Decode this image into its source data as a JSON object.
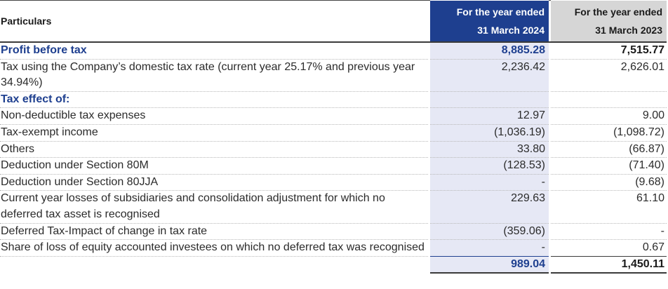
{
  "header": {
    "particulars": "Particulars",
    "col_2024_line1": "For the year ended",
    "col_2024_line2": "31 March 2024",
    "col_2023_line1": "For the year ended",
    "col_2023_line2": "31 March 2023"
  },
  "rows": [
    {
      "label": "Profit before tax",
      "y2024": "8,885.28",
      "y2023": "7,515.77"
    },
    {
      "label": "Tax using the Company’s domestic tax rate (current year 25.17% and previous year 34.94%)",
      "y2024": "2,236.42",
      "y2023": "2,626.01"
    },
    {
      "label": "Tax effect of:",
      "y2024": "",
      "y2023": ""
    },
    {
      "label": "Non-deductible tax expenses",
      "y2024": "12.97",
      "y2023": "9.00"
    },
    {
      "label": "Tax-exempt income",
      "y2024": "(1,036.19)",
      "y2023": "(1,098.72)"
    },
    {
      "label": "Others",
      "y2024": "33.80",
      "y2023": "(66.87)"
    },
    {
      "label": "Deduction under Section 80M",
      "y2024": "(128.53)",
      "y2023": "(71.40)"
    },
    {
      "label": "Deduction under Section 80JJA",
      "y2024": "-",
      "y2023": "(9.68)"
    },
    {
      "label": "Current year losses of subsidiaries and consolidation adjustment for which no deferred tax asset is recognised",
      "y2024": "229.63",
      "y2023": "61.10"
    },
    {
      "label": "Deferred Tax-Impact of change in tax rate",
      "y2024": "(359.06)",
      "y2023": "-"
    },
    {
      "label": "Share of loss of equity accounted investees on which no deferred tax was recognised",
      "y2024": "-",
      "y2023": "0.67"
    }
  ],
  "total": {
    "y2024": "989.04",
    "y2023": "1,450.11"
  }
}
